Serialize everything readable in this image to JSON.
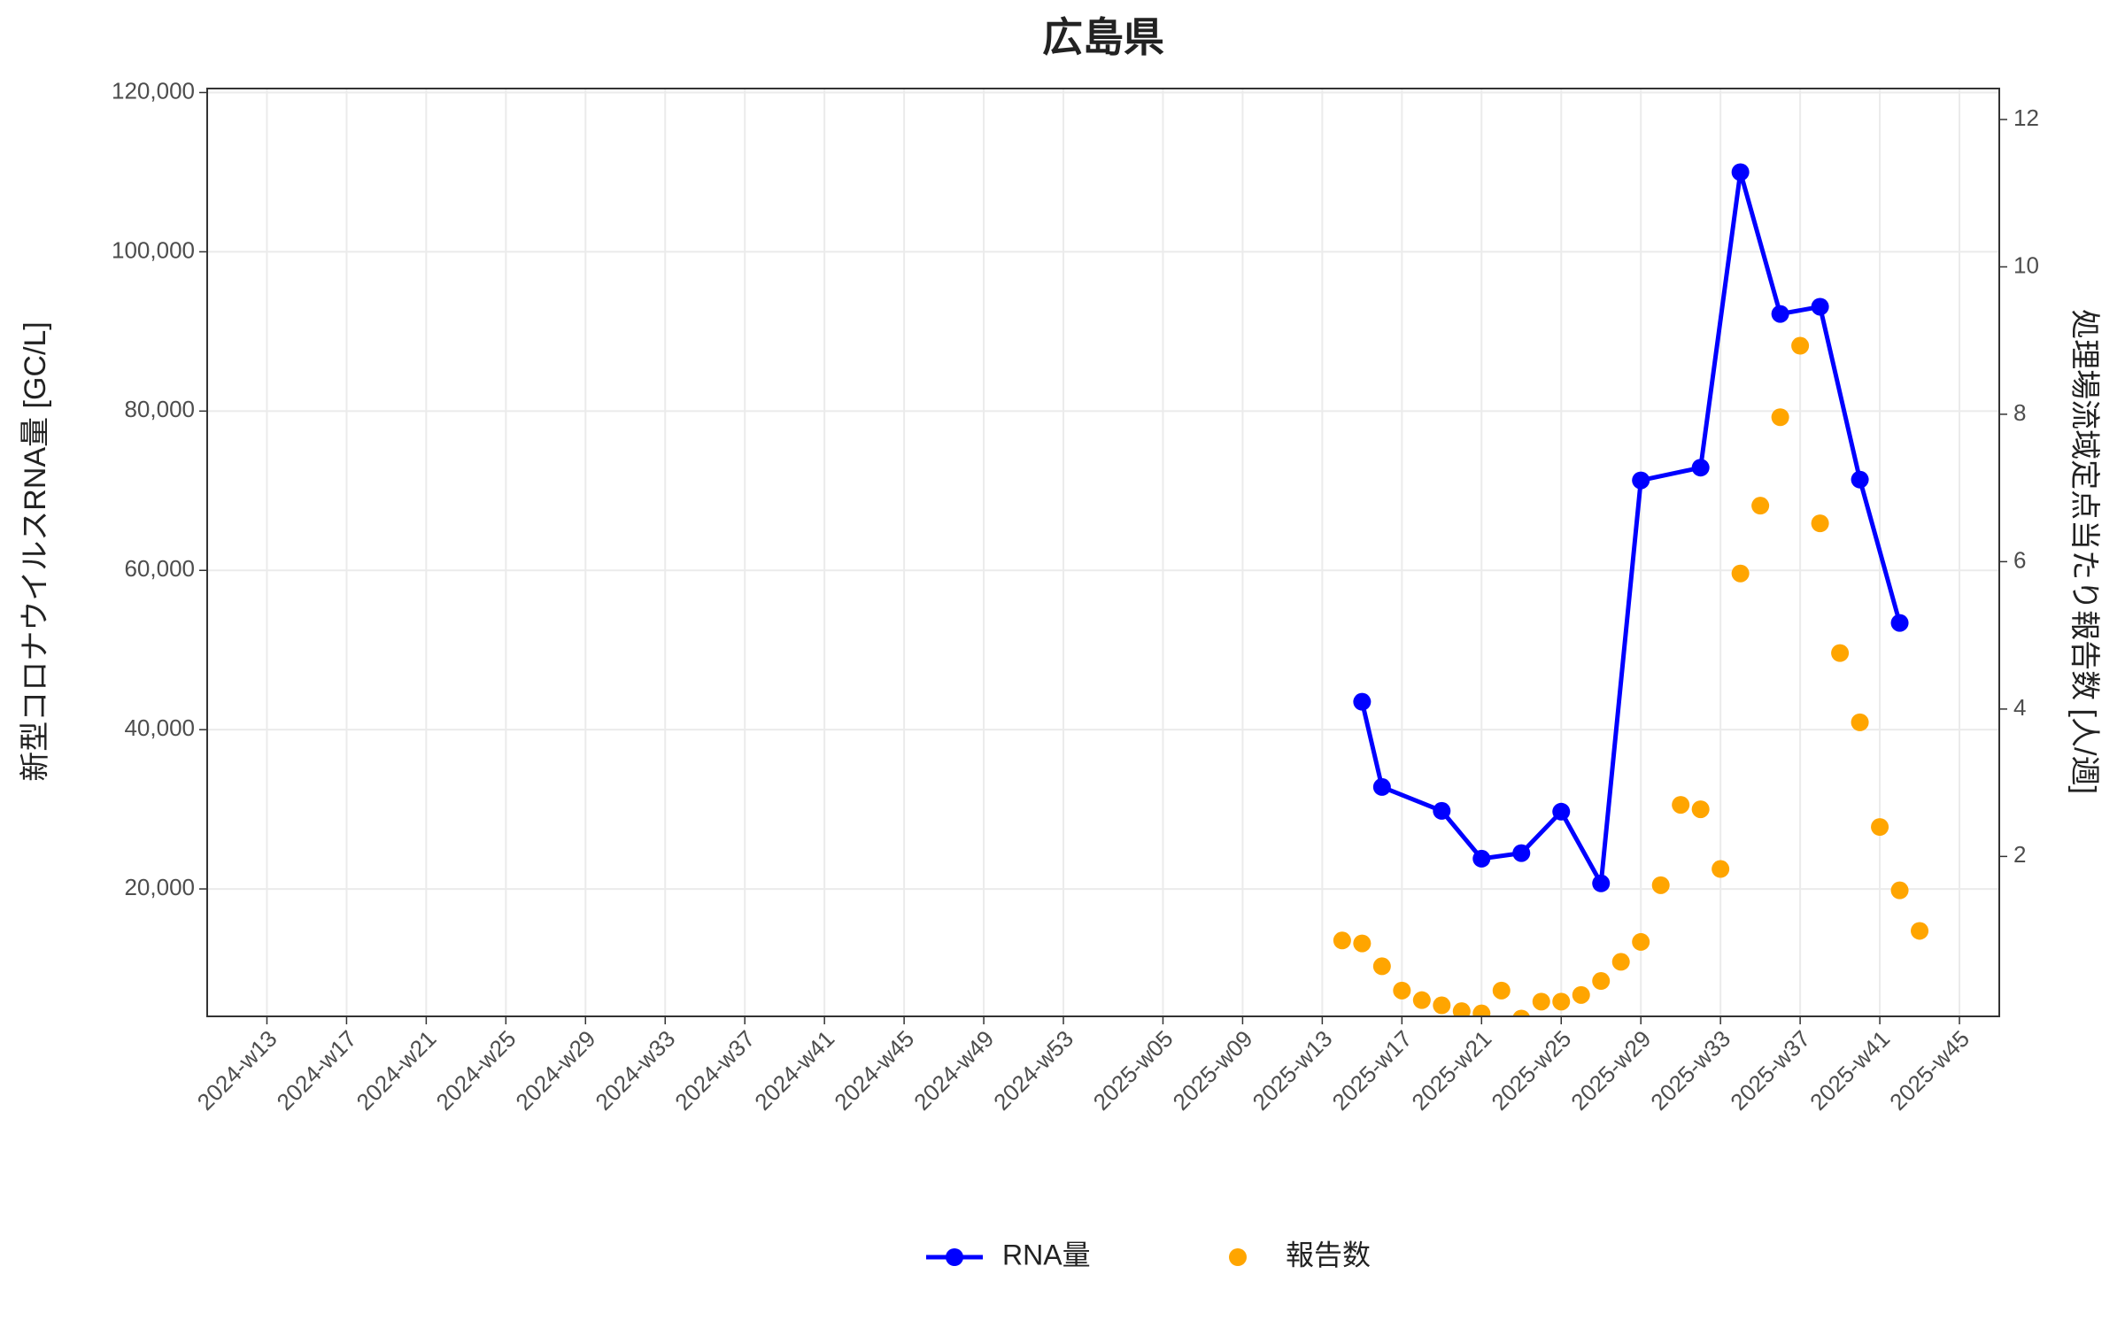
{
  "chart_data": {
    "type": "line",
    "title": "広島県",
    "y_label": "新型コロナウイルスRNA量 [GC/L]",
    "y2_label": "処理場流域定点当たり報告数 [人/週]",
    "xlim": [
      -3,
      87
    ],
    "xticks": [
      {
        "value": 0,
        "label": "2024-w13"
      },
      {
        "value": 4,
        "label": "2024-w17"
      },
      {
        "value": 8,
        "label": "2024-w21"
      },
      {
        "value": 12,
        "label": "2024-w25"
      },
      {
        "value": 16,
        "label": "2024-w29"
      },
      {
        "value": 20,
        "label": "2024-w33"
      },
      {
        "value": 24,
        "label": "2024-w37"
      },
      {
        "value": 28,
        "label": "2024-w41"
      },
      {
        "value": 32,
        "label": "2024-w45"
      },
      {
        "value": 36,
        "label": "2024-w49"
      },
      {
        "value": 40,
        "label": "2024-w53"
      },
      {
        "value": 45,
        "label": "2025-w05"
      },
      {
        "value": 49,
        "label": "2025-w09"
      },
      {
        "value": 53,
        "label": "2025-w13"
      },
      {
        "value": 57,
        "label": "2025-w17"
      },
      {
        "value": 61,
        "label": "2025-w21"
      },
      {
        "value": 65,
        "label": "2025-w25"
      },
      {
        "value": 69,
        "label": "2025-w29"
      },
      {
        "value": 73,
        "label": "2025-w33"
      },
      {
        "value": 77,
        "label": "2025-w37"
      },
      {
        "value": 81,
        "label": "2025-w41"
      },
      {
        "value": 85,
        "label": "2025-w45"
      }
    ],
    "ylim": [
      4000,
      120500
    ],
    "yticks": [
      {
        "value": 20000,
        "label": "20,000"
      },
      {
        "value": 40000,
        "label": "40,000"
      },
      {
        "value": 60000,
        "label": "60,000"
      },
      {
        "value": 80000,
        "label": "80,000"
      },
      {
        "value": 100000,
        "label": "100,000"
      },
      {
        "value": 120000,
        "label": "120,000"
      }
    ],
    "y2lim": [
      -0.17,
      12.42
    ],
    "y2ticks": [
      2,
      4,
      6,
      8,
      10,
      12
    ],
    "grid": true,
    "legend": "bottom",
    "series": [
      {
        "name": "RNA量",
        "color": "#0000ff",
        "style": "line-points",
        "x": [
          55,
          56,
          59,
          61,
          63,
          65,
          67,
          69,
          72,
          74,
          76,
          78,
          80,
          82
        ],
        "values": [
          43500,
          32800,
          29800,
          23800,
          24500,
          29700,
          20700,
          71300,
          72900,
          110000,
          92200,
          93100,
          71400,
          53400
        ]
      },
      {
        "name": "報告数",
        "color": "#ffa500",
        "style": "points",
        "axis": "y2",
        "x": [
          54,
          55,
          56,
          57,
          58,
          59,
          60,
          61,
          62,
          63,
          64,
          65,
          66,
          67,
          68,
          69,
          70,
          71,
          72,
          73,
          74,
          75,
          76,
          77,
          78,
          79,
          80,
          81,
          82,
          83
        ],
        "values": [
          0.86,
          0.82,
          0.51,
          0.18,
          0.05,
          -0.02,
          -0.1,
          -0.13,
          0.18,
          -0.2,
          0.03,
          0.03,
          0.12,
          0.31,
          0.57,
          0.84,
          1.61,
          2.7,
          2.64,
          1.83,
          5.84,
          6.76,
          7.96,
          8.93,
          6.52,
          4.76,
          3.82,
          2.4,
          1.54,
          0.99
        ]
      }
    ]
  }
}
